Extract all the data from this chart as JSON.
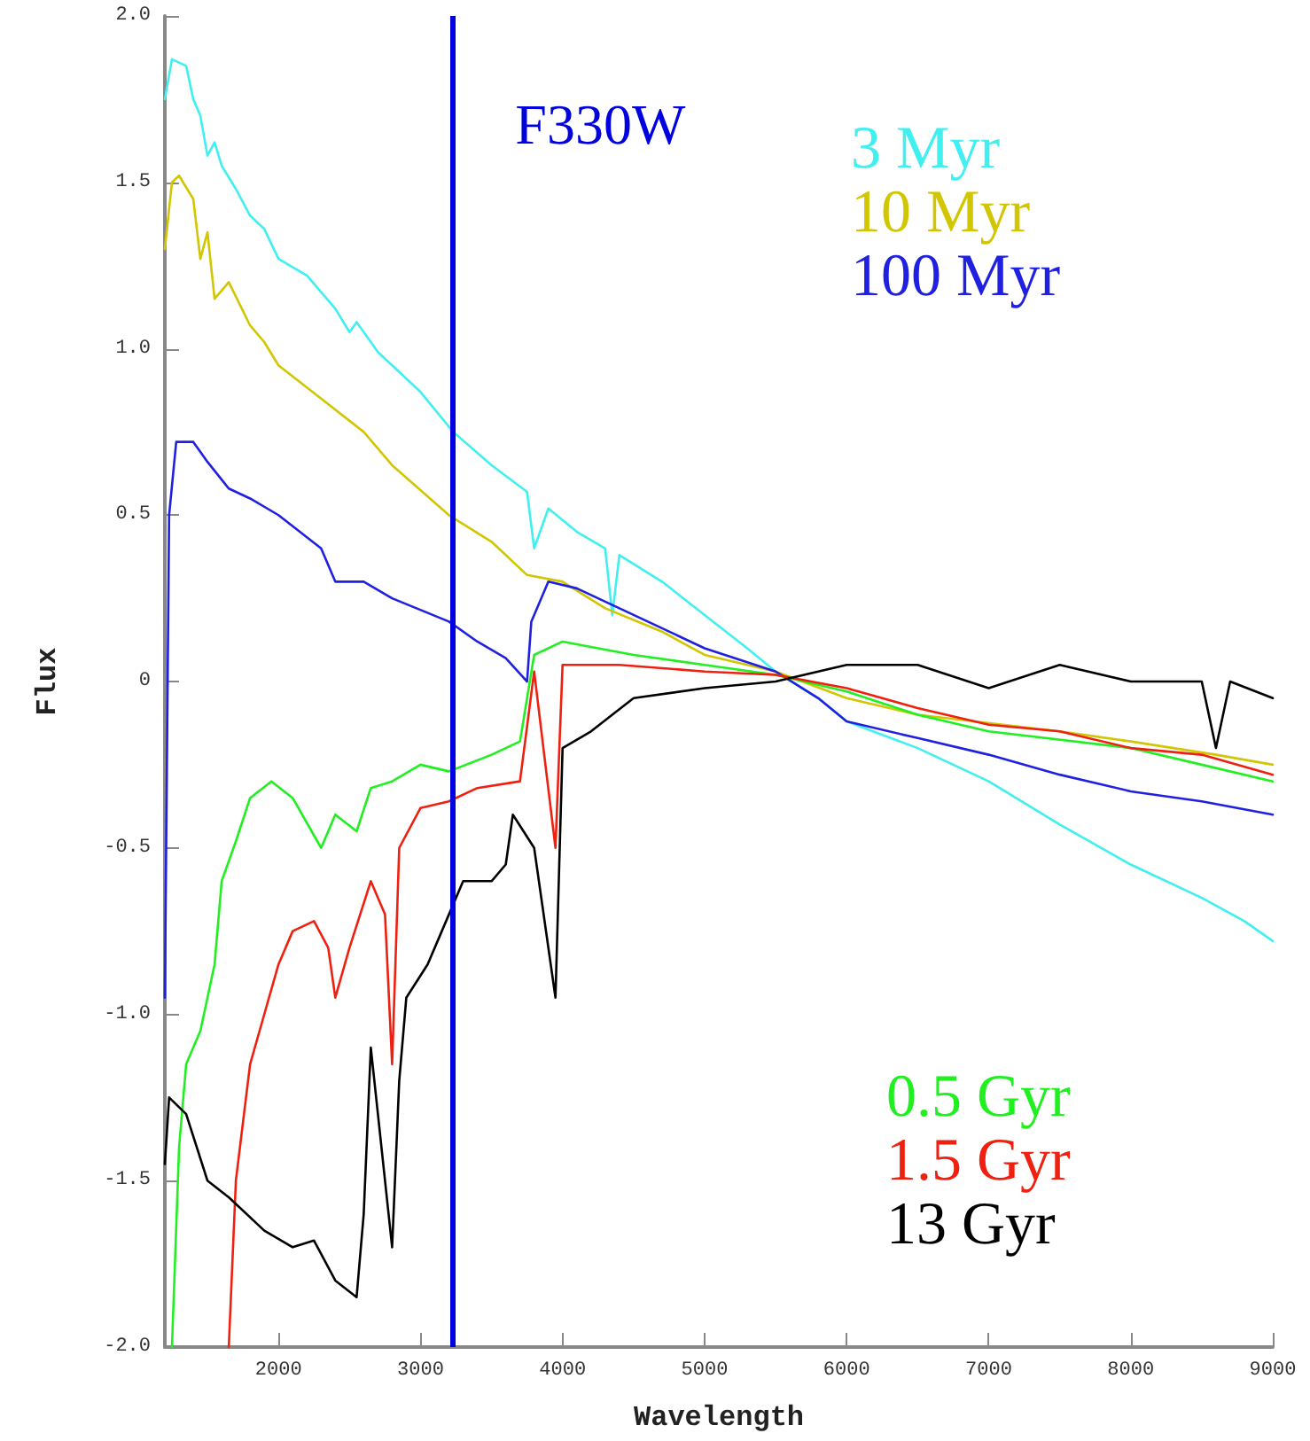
{
  "chart_data": {
    "type": "line",
    "xlabel": "Wavelength",
    "ylabel": "Flux",
    "xlim": [
      1200,
      9000
    ],
    "xticks": [
      2000,
      3000,
      4000,
      5000,
      6000,
      7000,
      8000,
      9000
    ],
    "ylim": [
      -2,
      2
    ],
    "yticks": [
      {
        "value": -2,
        "label": "-2.0"
      },
      {
        "value": -1.5,
        "label": "-1.5"
      },
      {
        "value": -1,
        "label": "-1.0"
      },
      {
        "value": -0.5,
        "label": "-0.5"
      },
      0,
      {
        "value": 0.5,
        "label": "0.5"
      },
      {
        "value": 1,
        "label": "1.0"
      },
      {
        "value": 1.5,
        "label": "1.5"
      },
      {
        "value": 2,
        "label": "2.0"
      }
    ],
    "grid": false,
    "legend": "right",
    "marker": "none",
    "line_style": "solid",
    "ref_lines": [
      {
        "axis": "x",
        "value": 3230,
        "label": "F330W",
        "color": "#0000e0"
      }
    ],
    "series": [
      {
        "name": "3 Myr",
        "color": "#40f0f0",
        "x": [
          1200,
          1250,
          1350,
          1400,
          1450,
          1500,
          1550,
          1600,
          1700,
          1800,
          1900,
          2000,
          2200,
          2400,
          2500,
          2550,
          2700,
          3000,
          3230,
          3500,
          3750,
          3800,
          3900,
          4100,
          4300,
          4350,
          4400,
          4700,
          5000,
          5300,
          5500,
          5800,
          6000,
          6500,
          7000,
          7500,
          8000,
          8500,
          8800,
          9000
        ],
        "values": [
          1.75,
          1.87,
          1.85,
          1.75,
          1.7,
          1.58,
          1.62,
          1.55,
          1.48,
          1.4,
          1.36,
          1.27,
          1.22,
          1.12,
          1.05,
          1.08,
          0.99,
          0.87,
          0.75,
          0.65,
          0.57,
          0.4,
          0.52,
          0.45,
          0.4,
          0.2,
          0.38,
          0.3,
          0.2,
          0.1,
          0.03,
          -0.05,
          -0.12,
          -0.2,
          -0.3,
          -0.43,
          -0.55,
          -0.65,
          -0.72,
          -0.78
        ]
      },
      {
        "name": "10 Myr",
        "color": "#d2c600",
        "x": [
          1200,
          1250,
          1300,
          1400,
          1450,
          1500,
          1550,
          1650,
          1800,
          1900,
          2000,
          2300,
          2600,
          2800,
          3200,
          3500,
          3750,
          4000,
          4300,
          4700,
          5000,
          5500,
          6000,
          6500,
          7500,
          8000,
          8600,
          9000
        ],
        "values": [
          1.3,
          1.5,
          1.52,
          1.45,
          1.27,
          1.35,
          1.15,
          1.2,
          1.07,
          1.02,
          0.95,
          0.85,
          0.75,
          0.65,
          0.5,
          0.42,
          0.32,
          0.3,
          0.22,
          0.15,
          0.08,
          0.03,
          -0.05,
          -0.1,
          -0.15,
          -0.18,
          -0.22,
          -0.25
        ]
      },
      {
        "name": "100 Myr",
        "color": "#2020e0",
        "x": [
          1200,
          1230,
          1280,
          1400,
          1500,
          1650,
          1800,
          2000,
          2300,
          2400,
          2600,
          2800,
          3200,
          3400,
          3600,
          3750,
          3780,
          3900,
          4100,
          4500,
          5000,
          5500,
          5800,
          6000,
          6500,
          7000,
          7500,
          8000,
          8500,
          9000
        ],
        "values": [
          -0.95,
          0.5,
          0.72,
          0.72,
          0.66,
          0.58,
          0.55,
          0.5,
          0.4,
          0.3,
          0.3,
          0.25,
          0.18,
          0.12,
          0.07,
          0,
          0.18,
          0.3,
          0.28,
          0.2,
          0.1,
          0.03,
          -0.05,
          -0.12,
          -0.17,
          -0.22,
          -0.28,
          -0.33,
          -0.36,
          -0.4
        ]
      },
      {
        "name": "0.5 Gyr",
        "color": "#20f020",
        "x": [
          1250,
          1300,
          1350,
          1450,
          1550,
          1600,
          1700,
          1800,
          1950,
          2100,
          2300,
          2400,
          2550,
          2650,
          2800,
          3000,
          3200,
          3500,
          3700,
          3800,
          4000,
          4500,
          5000,
          5500,
          6000,
          6500,
          7000,
          8000,
          8500,
          9000
        ],
        "values": [
          -2,
          -1.4,
          -1.15,
          -1.05,
          -0.85,
          -0.6,
          -0.48,
          -0.35,
          -0.3,
          -0.35,
          -0.5,
          -0.4,
          -0.45,
          -0.32,
          -0.3,
          -0.25,
          -0.27,
          -0.22,
          -0.18,
          0.08,
          0.12,
          0.08,
          0.05,
          0.02,
          -0.03,
          -0.1,
          -0.15,
          -0.2,
          -0.25,
          -0.3
        ]
      },
      {
        "name": "1.5 Gyr",
        "color": "#f02010",
        "x": [
          1650,
          1700,
          1800,
          1900,
          2000,
          2100,
          2250,
          2350,
          2400,
          2500,
          2650,
          2750,
          2800,
          2850,
          3000,
          3200,
          3400,
          3700,
          3800,
          3950,
          4000,
          4400,
          5000,
          5500,
          6000,
          6500,
          7000,
          7500,
          8000,
          8500,
          9000
        ],
        "values": [
          -2,
          -1.5,
          -1.15,
          -1,
          -0.85,
          -0.75,
          -0.72,
          -0.8,
          -0.95,
          -0.8,
          -0.6,
          -0.7,
          -1.15,
          -0.5,
          -0.38,
          -0.36,
          -0.32,
          -0.3,
          0.03,
          -0.5,
          0.05,
          0.05,
          0.03,
          0.02,
          -0.02,
          -0.08,
          -0.13,
          -0.15,
          -0.2,
          -0.22,
          -0.28
        ]
      },
      {
        "name": "13 Gyr",
        "color": "#000000",
        "x": [
          1200,
          1230,
          1350,
          1500,
          1650,
          1900,
          2100,
          2250,
          2400,
          2550,
          2600,
          2650,
          2700,
          2800,
          2850,
          2900,
          3050,
          3150,
          3300,
          3500,
          3600,
          3650,
          3800,
          3950,
          4000,
          4200,
          4500,
          5000,
          5500,
          6000,
          6500,
          7000,
          7500,
          8000,
          8500,
          8600,
          8700,
          9000
        ],
        "values": [
          -1.45,
          -1.25,
          -1.3,
          -1.5,
          -1.55,
          -1.65,
          -1.7,
          -1.68,
          -1.8,
          -1.85,
          -1.6,
          -1.1,
          -1.3,
          -1.7,
          -1.2,
          -0.95,
          -0.85,
          -0.75,
          -0.6,
          -0.6,
          -0.55,
          -0.4,
          -0.5,
          -0.95,
          -0.2,
          -0.15,
          -0.05,
          -0.02,
          0,
          0.05,
          0.05,
          -0.02,
          0.05,
          0,
          0,
          -0.2,
          0,
          -0.05
        ]
      }
    ]
  }
}
